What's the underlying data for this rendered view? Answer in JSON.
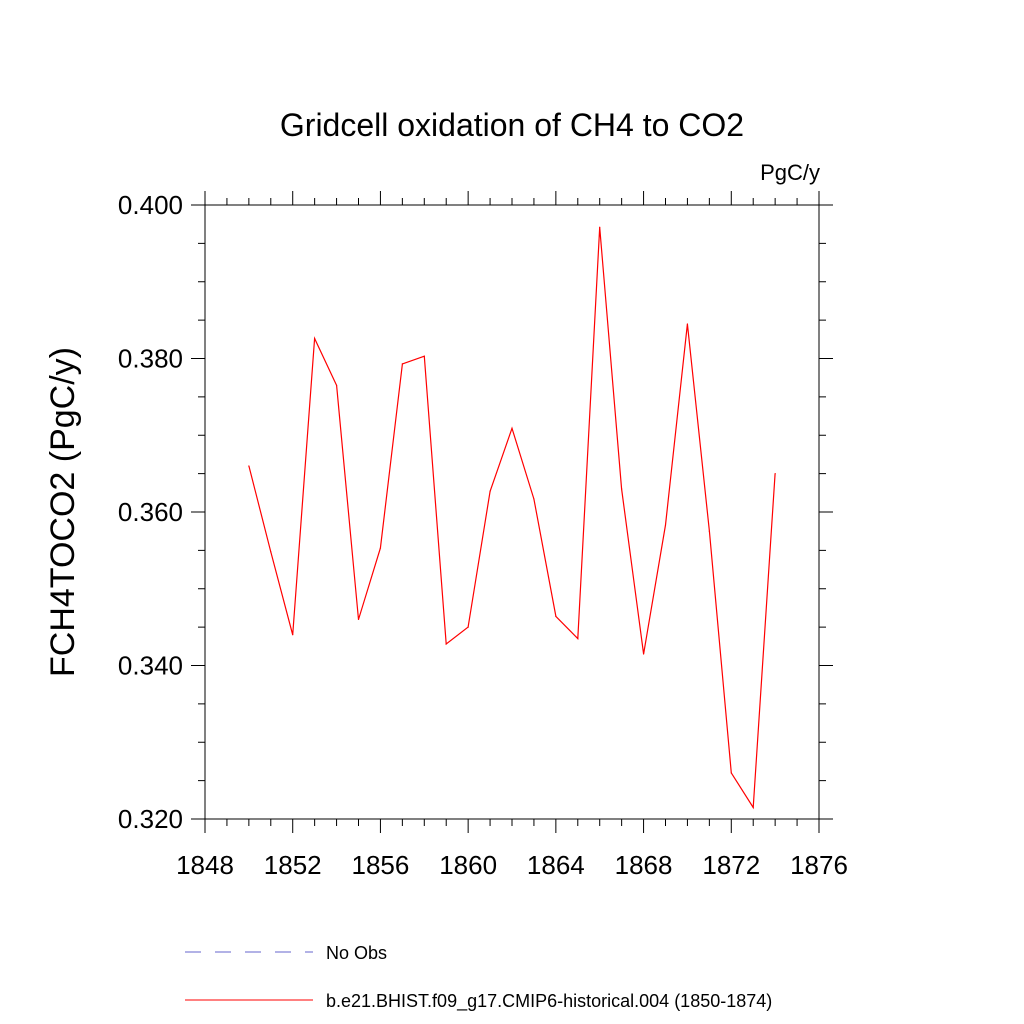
{
  "chart_data": {
    "type": "line",
    "title": "Gridcell oxidation of CH4 to CO2",
    "units": "PgC/y",
    "ylabel": "FCH4TOCO2  (PgC/y)",
    "xlabel": "",
    "xlim": [
      1848,
      1876
    ],
    "ylim": [
      0.32,
      0.4
    ],
    "x_ticks": [
      "1848",
      "1852",
      "1856",
      "1860",
      "1864",
      "1868",
      "1872",
      "1876"
    ],
    "y_ticks": [
      "0.320",
      "0.340",
      "0.360",
      "0.380",
      "0.400"
    ],
    "x": [
      1850,
      1851,
      1852,
      1853,
      1854,
      1855,
      1856,
      1857,
      1858,
      1859,
      1860,
      1861,
      1862,
      1863,
      1864,
      1865,
      1866,
      1867,
      1868,
      1869,
      1870,
      1871,
      1872,
      1873,
      1874
    ],
    "series": [
      {
        "name": "b.e21.BHIST.f09_g17.CMIP6-historical.004 (1850-1874)",
        "color": "#ff0000",
        "style": "solid",
        "values": [
          0.366,
          0.3548,
          0.344,
          0.3826,
          0.3765,
          0.346,
          0.3553,
          0.3793,
          0.3803,
          0.3428,
          0.345,
          0.3627,
          0.3709,
          0.3617,
          0.3464,
          0.3435,
          0.3971,
          0.363,
          0.3415,
          0.3583,
          0.3845,
          0.3575,
          0.326,
          0.3215,
          0.365
        ]
      }
    ],
    "legend": [
      {
        "label": "No Obs",
        "color": "#6666cc",
        "style": "dashed"
      },
      {
        "label": "b.e21.BHIST.f09_g17.CMIP6-historical.004 (1850-1874)",
        "color": "#ff0000",
        "style": "solid"
      }
    ]
  }
}
